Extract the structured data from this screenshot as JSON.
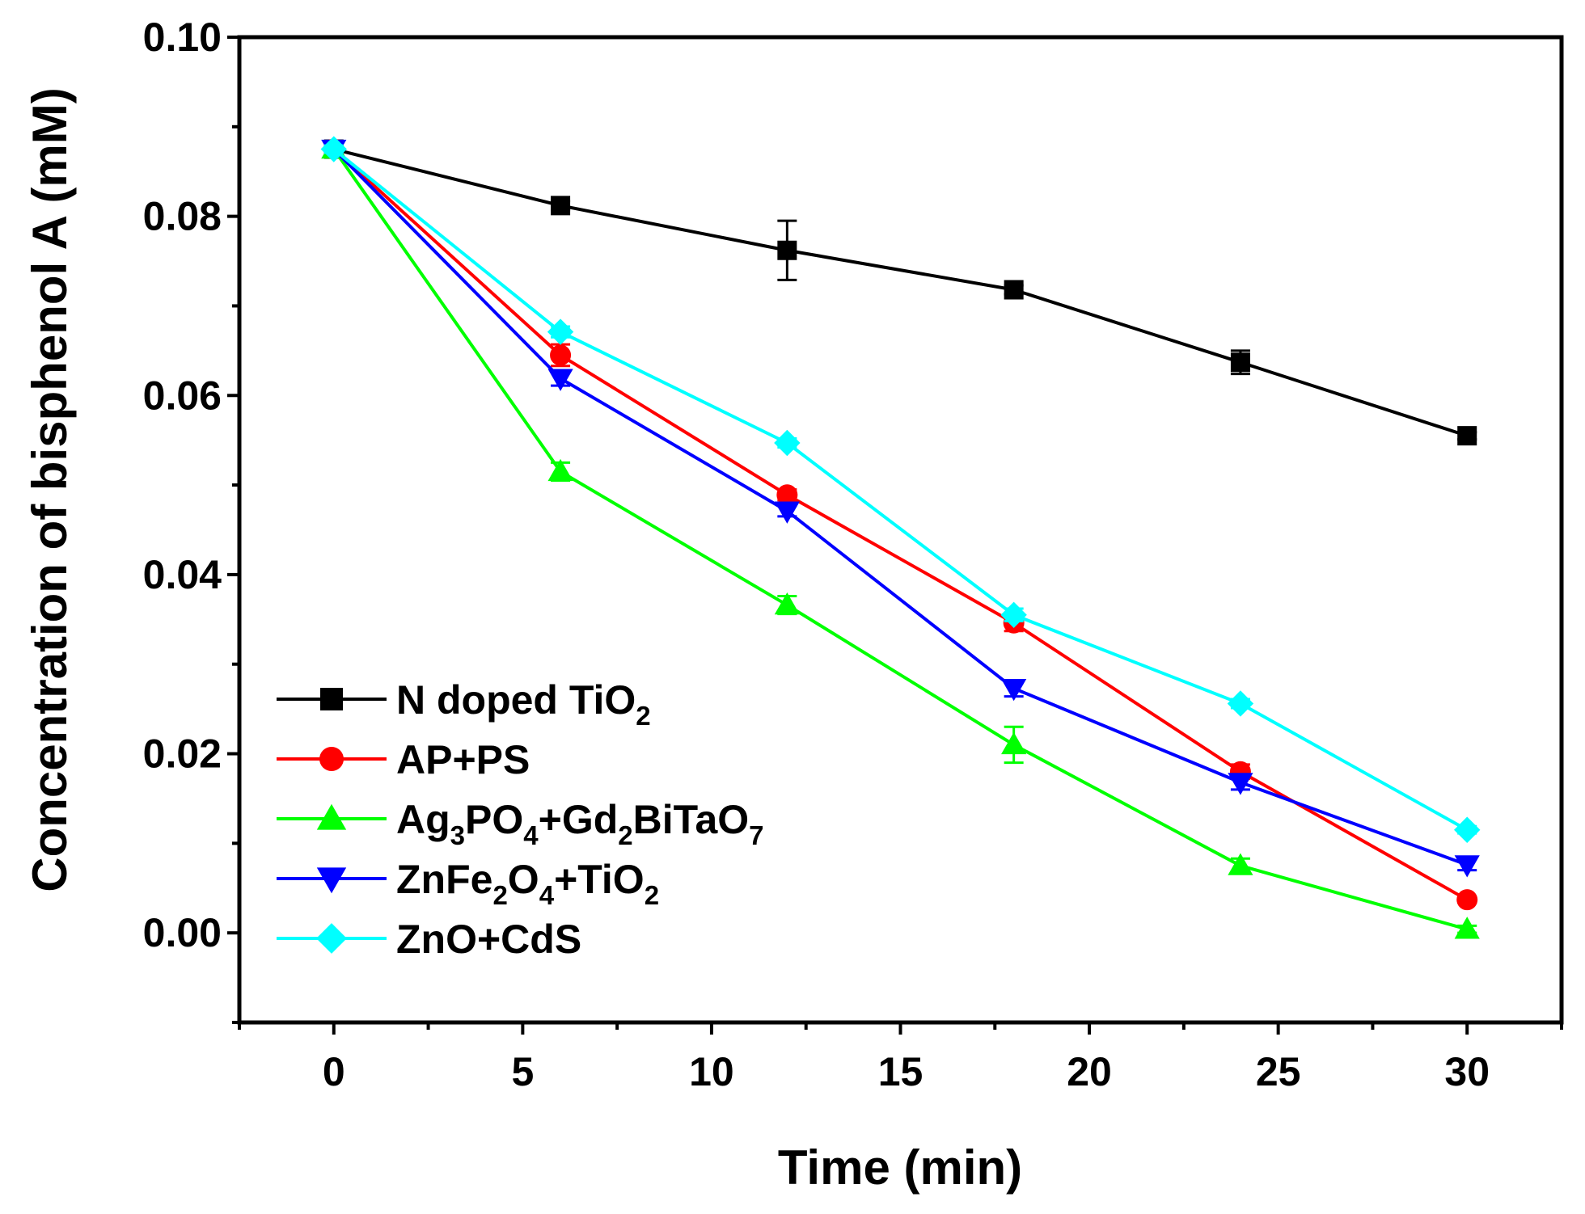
{
  "chart_data": {
    "type": "line",
    "title": "",
    "xlabel": "Time (min)",
    "ylabel": "Concentration of bisphenol A (mM)",
    "xlim": [
      -2.5,
      32.5
    ],
    "ylim": [
      -0.01,
      0.1
    ],
    "xticks": [
      0,
      5,
      10,
      15,
      20,
      25,
      30
    ],
    "xtick_labels": [
      "0",
      "5",
      "10",
      "15",
      "20",
      "25",
      "30"
    ],
    "yticks": [
      0.0,
      0.02,
      0.04,
      0.06,
      0.08,
      0.1
    ],
    "ytick_labels": [
      "0.00",
      "0.02",
      "0.04",
      "0.06",
      "0.08",
      "0.10"
    ],
    "grid": false,
    "legend_position": "bottom-left",
    "x": [
      0,
      6,
      12,
      18,
      24,
      30
    ],
    "series": [
      {
        "name_parts": [
          {
            "t": "N doped TiO"
          },
          {
            "t": "2",
            "sub": true
          }
        ],
        "color": "#000000",
        "marker": "square",
        "values": [
          0.0875,
          0.0812,
          0.0762,
          0.0718,
          0.0637,
          0.0555
        ],
        "errors": [
          0.0005,
          0.0005,
          0.0033,
          0.0005,
          0.0013,
          0.0004
        ]
      },
      {
        "name_parts": [
          {
            "t": "AP+PS"
          }
        ],
        "color": "#ff0000",
        "marker": "circle",
        "values": [
          0.0875,
          0.0645,
          0.0489,
          0.0346,
          0.018,
          0.0037
        ],
        "errors": [
          0.0004,
          0.0012,
          0.0006,
          0.0009,
          0.0008,
          0.0003
        ]
      },
      {
        "name_parts": [
          {
            "t": "Ag"
          },
          {
            "t": "3",
            "sub": true
          },
          {
            "t": "PO"
          },
          {
            "t": "4",
            "sub": true
          },
          {
            "t": "+Gd"
          },
          {
            "t": "2",
            "sub": true
          },
          {
            "t": "BiTaO"
          },
          {
            "t": "7",
            "sub": true
          }
        ],
        "color": "#00ff00",
        "marker": "triangle-up",
        "values": [
          0.0875,
          0.0515,
          0.0366,
          0.021,
          0.0075,
          0.0004
        ],
        "errors": [
          0.0004,
          0.001,
          0.001,
          0.002,
          0.0008,
          0.0004
        ]
      },
      {
        "name_parts": [
          {
            "t": "ZnFe"
          },
          {
            "t": "2",
            "sub": true
          },
          {
            "t": "O"
          },
          {
            "t": "4",
            "sub": true
          },
          {
            "t": "+TiO"
          },
          {
            "t": "2",
            "sub": true
          }
        ],
        "color": "#0000ff",
        "marker": "triangle-down",
        "values": [
          0.0875,
          0.0619,
          0.0471,
          0.0273,
          0.0168,
          0.0076
        ],
        "errors": [
          0.0004,
          0.0008,
          0.0006,
          0.0009,
          0.0008,
          0.0006
        ]
      },
      {
        "name_parts": [
          {
            "t": "ZnO+CdS"
          }
        ],
        "color": "#00ffff",
        "marker": "diamond",
        "values": [
          0.0875,
          0.0671,
          0.0547,
          0.0355,
          0.0256,
          0.0115
        ],
        "errors": [
          0.0004,
          0.0006,
          0.0005,
          0.0007,
          0.0005,
          0.0004
        ]
      }
    ]
  }
}
